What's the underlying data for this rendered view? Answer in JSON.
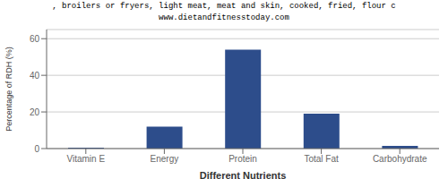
{
  "chart_data": {
    "type": "bar",
    "title": ", broilers or fryers, light meat, meat and skin, cooked, fried, flour c",
    "subtitle": "www.dietandfitnesstoday.com",
    "categories": [
      "Vitamin E",
      "Energy",
      "Protein",
      "Total Fat",
      "Carbohydrate"
    ],
    "values": [
      0.5,
      12,
      54,
      19,
      1.5
    ],
    "color": "#2d4d8b",
    "xlabel": "Different Nutrients",
    "ylabel": "Percentage of RDH (%)",
    "ylim": [
      0,
      65
    ],
    "yticks": [
      0,
      20,
      40,
      60
    ],
    "grid": true
  }
}
